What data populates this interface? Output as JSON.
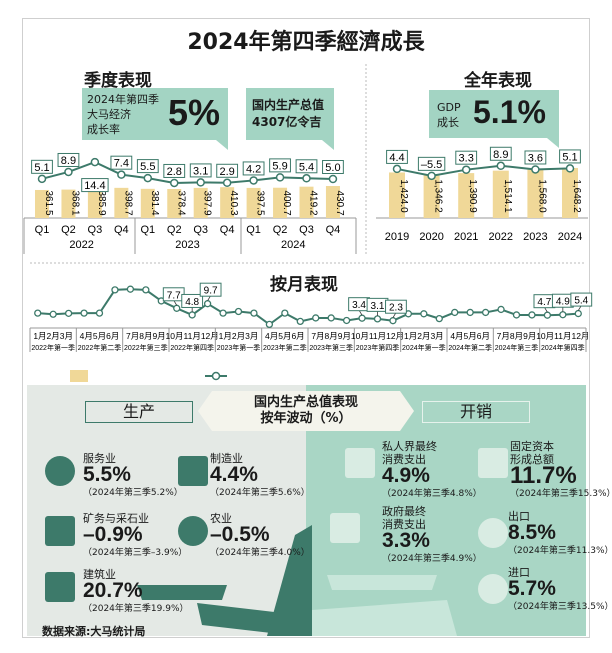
{
  "title": "2024年第四季經濟成長",
  "quarterly": {
    "heading": "季度表现",
    "callout_lines": [
      "2024年第四季",
      "大马经济",
      "成长率"
    ],
    "callout_value": "5%",
    "gdp_lines": [
      "国内生产总值",
      "4307亿令吉"
    ]
  },
  "annual": {
    "heading": "全年表现",
    "callout_lines": [
      "GDP",
      "成长"
    ],
    "callout_value": "5.1%"
  },
  "monthly": {
    "heading": "按月表现"
  },
  "colors": {
    "bar": "#f0d898",
    "line": "#3d7a6a",
    "mint": "#a3d4c3",
    "panel_left": "#e4e9e5",
    "panel_right": "#a9d6c5"
  },
  "chart_data": [
    {
      "type": "bar",
      "title": "季度表现",
      "categories": [
        "Q1",
        "Q2",
        "Q3",
        "Q4",
        "Q1",
        "Q2",
        "Q3",
        "Q4",
        "Q1",
        "Q2",
        "Q3",
        "Q4"
      ],
      "groups": [
        "2022",
        "2023",
        "2024"
      ],
      "series": [
        {
          "type": "bar",
          "values": [
            361.5,
            368.1,
            385.9,
            398.7,
            381.4,
            378.4,
            397.9,
            410.3,
            397.5,
            400.7,
            419.2,
            430.7
          ]
        },
        {
          "type": "line",
          "values": [
            5.1,
            8.9,
            14.4,
            7.4,
            5.5,
            2.8,
            3.1,
            2.9,
            4.2,
            5.9,
            5.4,
            5.0
          ]
        }
      ],
      "bar_labels": [
        "361.5",
        "368.1",
        "385.9",
        "398.7",
        "381.4",
        "378.4",
        "397.9",
        "410.3",
        "397.5",
        "400.7",
        "419.2",
        "430.7"
      ],
      "line_labels": [
        "5.1",
        "8.9",
        "14.4",
        "7.4",
        "5.5",
        "2.8",
        "3.1",
        "2.9",
        "4.2",
        "5.9",
        "5.4",
        "5.0"
      ]
    },
    {
      "type": "bar",
      "title": "全年表现",
      "categories": [
        "2019",
        "2020",
        "2021",
        "2022",
        "2023",
        "2024"
      ],
      "series": [
        {
          "type": "bar",
          "values": [
            1424.0,
            1346.2,
            1390.9,
            1514.1,
            1568.0,
            1648.2
          ]
        },
        {
          "type": "line",
          "values": [
            4.4,
            -5.5,
            3.3,
            8.9,
            3.6,
            5.1
          ]
        }
      ],
      "bar_labels": [
        "1,424.0",
        "1,346.2",
        "1,390.9",
        "1,514.1",
        "1,568.0",
        "1,648.2"
      ],
      "line_labels": [
        "4.4",
        "–5.5",
        "3.3",
        "8.9",
        "3.6",
        "5.1"
      ]
    },
    {
      "type": "line",
      "title": "按月表现",
      "groups": [
        [
          "1月2月3月",
          "2022年第一季"
        ],
        [
          "4月5月6月",
          "2022年第二季"
        ],
        [
          "7月8月9月",
          "2022年第三季"
        ],
        [
          "10月11月12月",
          "2022年第四季"
        ],
        [
          "1月2月3月",
          "2023年第一季"
        ],
        [
          "4月5月6月",
          "2023年第二季"
        ],
        [
          "7月8月9月",
          "2023年第三季"
        ],
        [
          "10月11月12月",
          "2023年第四季"
        ],
        [
          "1月2月3月",
          "2024年第一季"
        ],
        [
          "4月5月6月",
          "2024年第二季"
        ],
        [
          "7月8月9月",
          "2024年第三季"
        ],
        [
          "10月11月12月",
          "2024年第四季"
        ]
      ],
      "values": [
        5.6,
        5.1,
        5.5,
        5.6,
        5.6,
        15.7,
        16.0,
        15.7,
        10.9,
        7.7,
        4.8,
        9.7,
        5.6,
        6.3,
        5.6,
        0.7,
        5.6,
        2.0,
        3.5,
        3.5,
        2.4,
        3.4,
        3.1,
        2.3,
        5.3,
        5.3,
        3.2,
        5.9,
        5.9,
        5.9,
        7.2,
        4.8,
        4.8,
        4.7,
        4.9,
        5.4
      ],
      "labels": {
        "9": "7.7",
        "10": "4.8",
        "11": "9.7",
        "21": "3.4",
        "22": "3.1",
        "23": "2.3",
        "33": "4.7",
        "34": "4.9",
        "35": "5.4"
      }
    }
  ],
  "gdp_section": {
    "center_lines": [
      "国内生产总值表现",
      "按年波动（%）"
    ],
    "production": "生产",
    "expenditure": "开销"
  },
  "production": [
    {
      "icon": "services-icon",
      "name": "服务业",
      "value": "5.5%",
      "note": "（2024年第三季5.2%）"
    },
    {
      "icon": "factory-icon",
      "name": "制造业",
      "value": "4.4%",
      "note": "（2024年第三季5.6%）"
    },
    {
      "icon": "oil-rig-icon",
      "name": "矿务与采石业",
      "value": "–0.9%",
      "note": "（2024年第三季–3.9%）"
    },
    {
      "icon": "palm-icon",
      "name": "农业",
      "value": "–0.5%",
      "note": "（2024年第三季4.0%）"
    },
    {
      "icon": "crane-icon",
      "name": "建筑业",
      "value": "20.7%",
      "note": "（2024年第三季19.9%）"
    }
  ],
  "expenditure": [
    {
      "icon": "house-icon",
      "name": [
        "私人界最终",
        "消费支出"
      ],
      "value": "4.9%",
      "note": "（2024年第三季4.8%）"
    },
    {
      "icon": "building-icon",
      "name": [
        "固定资本",
        "形成总额"
      ],
      "value": "11.7%",
      "note": "（2024年第三季15.3%）"
    },
    {
      "icon": "government-icon",
      "name": [
        "政府最终",
        "消费支出"
      ],
      "value": "3.3%",
      "note": "（2024年第三季4.9%）"
    },
    {
      "icon": "export-icon",
      "name": [
        "出口"
      ],
      "value": "8.5%",
      "note": "（2024年第三季11.3%）"
    },
    {
      "icon": "import-icon",
      "name": [
        "进口"
      ],
      "value": "5.7%",
      "note": "（2024年第三季13.5%）"
    }
  ],
  "source": "数据来源:大马统计局"
}
